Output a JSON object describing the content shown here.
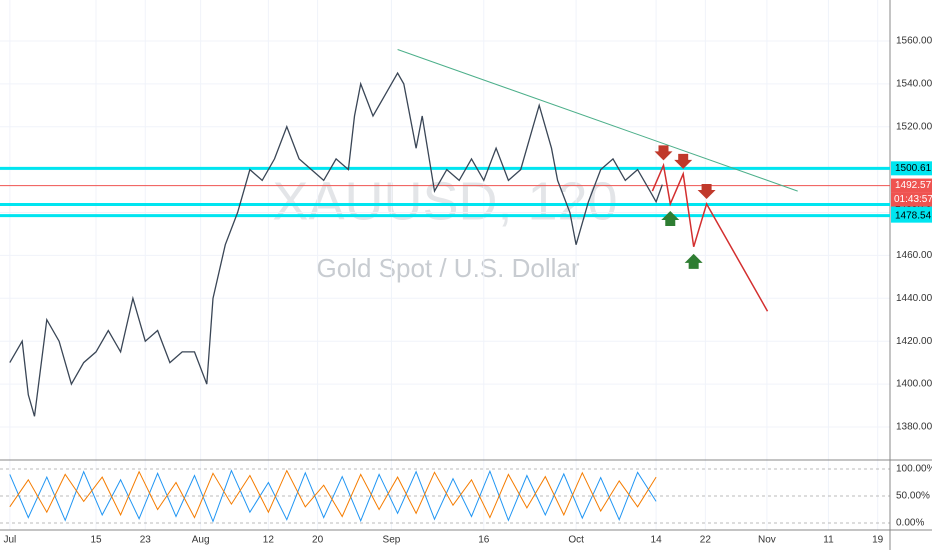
{
  "chart_data": {
    "type": "line",
    "watermark_symbol": "XAUUSD, 120",
    "watermark_name": "Gold Spot / U.S. Dollar",
    "xlim": [
      -1.6,
      143
    ],
    "ylim": [
      1364.6,
      1579.1
    ],
    "xticks": [
      {
        "value": 0,
        "label": "Jul"
      },
      {
        "value": 14,
        "label": "15"
      },
      {
        "value": 22,
        "label": "23"
      },
      {
        "value": 31,
        "label": "Aug"
      },
      {
        "value": 42,
        "label": "12"
      },
      {
        "value": 50,
        "label": "20"
      },
      {
        "value": 62,
        "label": "Sep"
      },
      {
        "value": 77,
        "label": "16"
      },
      {
        "value": 92,
        "label": "Oct"
      },
      {
        "value": 105,
        "label": "14"
      },
      {
        "value": 113,
        "label": "22"
      },
      {
        "value": 123,
        "label": "Nov"
      },
      {
        "value": 133,
        "label": "11"
      },
      {
        "value": 141,
        "label": "19"
      }
    ],
    "yticks": [
      {
        "value": 1380,
        "label": "1380.00"
      },
      {
        "value": 1400,
        "label": "1400.00"
      },
      {
        "value": 1420,
        "label": "1420.00"
      },
      {
        "value": 1440,
        "label": "1440.00"
      },
      {
        "value": 1460,
        "label": "1460.00"
      },
      {
        "value": 1480,
        "label": "1480.00"
      },
      {
        "value": 1500,
        "label": "1500.00"
      },
      {
        "value": 1520,
        "label": "1520.00"
      },
      {
        "value": 1540,
        "label": "1540.00"
      },
      {
        "value": 1560,
        "label": "1560.00"
      }
    ],
    "series": [
      {
        "color": "#3a4656",
        "x": [
          0,
          2,
          3,
          4,
          6,
          8,
          10,
          12,
          14,
          16,
          18,
          20,
          22,
          24,
          26,
          28,
          30,
          32,
          33,
          35,
          37,
          39,
          41,
          43,
          45,
          47,
          49,
          51,
          53,
          55,
          56,
          57,
          59,
          61,
          63,
          64,
          66,
          67,
          69,
          71,
          73,
          75,
          77,
          79,
          81,
          83,
          85,
          86,
          88,
          89,
          91,
          92,
          94,
          96,
          98,
          100,
          102,
          104,
          105,
          106
        ],
        "values": [
          1410,
          1420,
          1395,
          1385,
          1430,
          1420,
          1400,
          1410,
          1415,
          1425,
          1415,
          1440,
          1420,
          1425,
          1410,
          1415,
          1415,
          1400,
          1440,
          1465,
          1480,
          1500,
          1495,
          1505,
          1520,
          1505,
          1500,
          1495,
          1505,
          1500,
          1525,
          1540,
          1525,
          1535,
          1545,
          1540,
          1510,
          1525,
          1490,
          1500,
          1495,
          1505,
          1495,
          1510,
          1495,
          1500,
          1520,
          1530,
          1510,
          1495,
          1480,
          1465,
          1485,
          1500,
          1505,
          1495,
          1500,
          1490,
          1485,
          1493
        ]
      }
    ],
    "levels": [
      {
        "value": 1500.61,
        "color": "#00e5f0"
      },
      {
        "value": 1492.57,
        "color": "#ef5350"
      },
      {
        "value": 1483.76,
        "color": "#00e5f0"
      },
      {
        "value": 1478.54,
        "color": "#00e5f0"
      }
    ],
    "countdown": "01:43:57",
    "trendline": {
      "color": "#4caf8a",
      "x": [
        63,
        128
      ],
      "values": [
        1556,
        1490
      ]
    },
    "projection": {
      "color": "#d32f2f",
      "x": [
        104.4,
        106.2,
        107.3,
        109.4,
        111.1,
        113.2,
        123.1
      ],
      "values": [
        1490,
        1502,
        1484,
        1498,
        1464,
        1484,
        1434
      ]
    },
    "oscillator": {
      "ylim": [
        -13,
        116.7
      ],
      "yticks": [
        {
          "value": 100,
          "label": "100.00%"
        },
        {
          "value": 50,
          "label": "50.00%"
        },
        {
          "value": 0,
          "label": "0.00%"
        }
      ],
      "x": [
        0,
        3,
        6,
        9,
        12,
        15,
        18,
        21,
        24,
        27,
        30,
        33,
        36,
        39,
        42,
        45,
        48,
        51,
        54,
        57,
        60,
        63,
        66,
        69,
        72,
        75,
        78,
        81,
        84,
        87,
        90,
        93,
        96,
        99,
        102,
        105
      ],
      "series": [
        {
          "color": "#2196f3",
          "values": [
            90,
            10,
            85,
            5,
            95,
            15,
            80,
            8,
            92,
            12,
            88,
            3,
            97,
            20,
            75,
            6,
            93,
            10,
            86,
            4,
            90,
            18,
            95,
            7,
            82,
            12,
            96,
            5,
            88,
            15,
            91,
            9,
            84,
            6,
            94,
            40
          ]
        },
        {
          "color": "#f57c00",
          "values": [
            30,
            80,
            20,
            90,
            40,
            85,
            15,
            95,
            25,
            75,
            10,
            92,
            35,
            88,
            20,
            97,
            30,
            70,
            12,
            90,
            25,
            85,
            18,
            94,
            33,
            80,
            10,
            90,
            28,
            86,
            15,
            93,
            22,
            78,
            30,
            85
          ]
        }
      ]
    }
  }
}
